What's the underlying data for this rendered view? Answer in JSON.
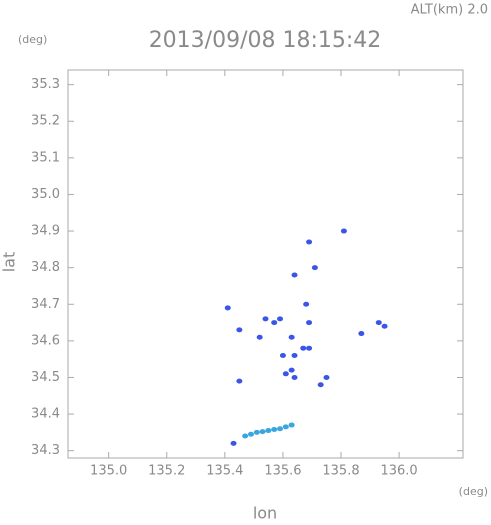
{
  "header": {
    "altitude": "ALT(km) 2.0",
    "unit_top": "(deg)",
    "unit_bottom": "(deg)"
  },
  "chart_data": {
    "type": "scatter",
    "title": "2013/09/08 18:15:42",
    "x_label": "lon",
    "y_label": "lat",
    "xlim": [
      134.86,
      136.22
    ],
    "ylim": [
      34.28,
      35.34
    ],
    "xticks": [
      {
        "value": 135,
        "label": "135.0"
      },
      135.2,
      135.4,
      135.6,
      135.8,
      {
        "value": 136,
        "label": "136.0"
      }
    ],
    "yticks": [
      34.3,
      34.4,
      34.5,
      34.6,
      34.7,
      34.8,
      34.9,
      {
        "value": 35,
        "label": "35.0"
      },
      35.1,
      35.2,
      35.3
    ],
    "series": [
      {
        "color": "#3a55e8",
        "x": [
          135.41,
          135.45,
          135.45,
          135.43,
          135.81,
          135.69,
          135.71,
          135.64,
          135.59,
          135.68,
          135.69,
          135.63,
          135.64,
          135.6,
          135.63,
          135.61,
          135.64,
          135.75,
          135.73,
          135.87,
          135.93,
          135.95,
          135.54,
          135.57,
          135.67,
          135.52,
          135.69
        ],
        "y": [
          34.69,
          34.63,
          34.49,
          34.32,
          34.9,
          34.87,
          34.8,
          34.78,
          34.66,
          34.7,
          34.65,
          34.61,
          34.56,
          34.56,
          34.52,
          34.51,
          34.5,
          34.5,
          34.48,
          34.62,
          34.65,
          34.64,
          34.66,
          34.65,
          34.58,
          34.61,
          34.58
        ]
      },
      {
        "color": "#3aa6e0",
        "x": [
          135.47,
          135.49,
          135.51,
          135.53,
          135.55,
          135.57,
          135.59,
          135.61,
          135.63
        ],
        "y": [
          34.34,
          34.345,
          34.35,
          34.352,
          34.355,
          34.358,
          34.36,
          34.365,
          34.37
        ]
      }
    ]
  }
}
